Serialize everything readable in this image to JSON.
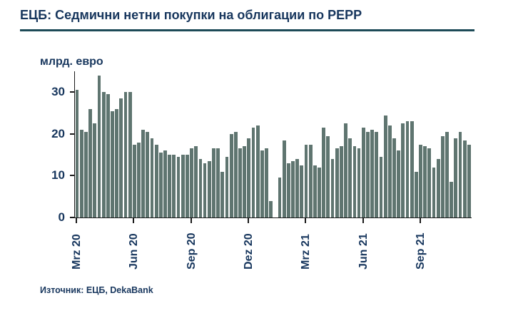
{
  "header": {
    "title": "ЕЦБ: Седмични нетни покупки на облигации по PEPP"
  },
  "footer": {
    "source": "Източник: ЕЦБ, DekaBank"
  },
  "colors": {
    "accent": "#17365d",
    "bar": "#5f7570",
    "rule": "#1d4a57"
  },
  "chart_data": {
    "type": "bar",
    "title": "ЕЦБ: Седмични нетни покупки на облигации по PEPP",
    "xlabel": "",
    "ylabel": "млрд. евро",
    "ylim": [
      0,
      35
    ],
    "yticks": [
      0,
      10,
      20,
      30
    ],
    "grid": false,
    "legend": "none",
    "x_tick_labels": [
      "Mrz 20",
      "Jun 20",
      "Sep 20",
      "Dez 20",
      "Mrz 21",
      "Jun 21",
      "Sep 21"
    ],
    "x_tick_positions": [
      0,
      13,
      26,
      39,
      52,
      65,
      78
    ],
    "x_unit": "week",
    "values": [
      30.5,
      21,
      20.5,
      26,
      22.5,
      34,
      30,
      29.5,
      25.5,
      26,
      28.5,
      30,
      30,
      17.5,
      18,
      21,
      20.5,
      19,
      17.5,
      15.5,
      16,
      15,
      15,
      14.5,
      15,
      15,
      16.5,
      17,
      14,
      13,
      13.5,
      16.5,
      16.5,
      11,
      14.5,
      20,
      20.5,
      16.5,
      17,
      19,
      21.5,
      22,
      16,
      16.5,
      4,
      0,
      9.5,
      18.5,
      13,
      13.5,
      14,
      12.5,
      17.5,
      17.5,
      12.5,
      12,
      21.5,
      19.5,
      14,
      16.5,
      17,
      22.5,
      19,
      17,
      16.5,
      21.5,
      20.5,
      21,
      20.5,
      14.5,
      24.5,
      22,
      19,
      16,
      22.5,
      23,
      23,
      11,
      17.5,
      17,
      16.5,
      12,
      14,
      19.5,
      20.5,
      8.5,
      19,
      20.5,
      18.5,
      17.5
    ],
    "bar_color": "#5f7570",
    "source": "Източник: ЕЦБ, DekaBank"
  }
}
